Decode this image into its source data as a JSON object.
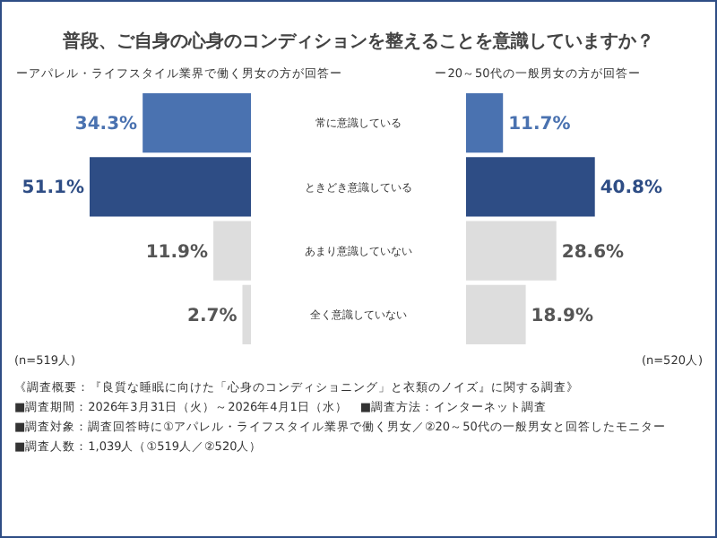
{
  "chart_data": [
    {
      "type": "bar",
      "orientation": "horizontal",
      "title": "普段、ご自身の心身のコンディションを整えることを意識していますか？",
      "subtitle": "ーアパレル・ライフスタイル業界で働く男女の方が回答ー",
      "categories": [
        "常に意識している",
        "ときどき意識している",
        "あまり意識していない",
        "全く意識していない"
      ],
      "values": [
        34.3,
        51.1,
        11.9,
        2.7
      ],
      "value_labels": [
        "34.3%",
        "51.1%",
        "11.9%",
        "2.7%"
      ],
      "colors": [
        "#4a72b0",
        "#2e4d85",
        "#dddddd",
        "#dddddd"
      ],
      "annotations": [
        "(n=519人)",
        "《調査概要：『良質な睡眠に向けた「心身のコンディショニング」と衣類のノイズ』に関する調査》",
        "■調査期間：2026年3月31日（火）～2026年4月1日（水）　■調査方法：インターネット調査",
        "■調査対象：調査回答時に①アパレル・ライフスタイル業界で働く男女／②20～50代の一般男女と回答したモニター",
        "■調査人数：1,039人（①519人／②520人）"
      ]
    },
    {
      "type": "bar",
      "orientation": "horizontal",
      "subtitle": "ー20～50代の一般男女の方が回答ー",
      "categories": [
        null,
        null,
        null,
        null
      ],
      "values": [
        11.7,
        40.8,
        28.6,
        18.9
      ],
      "value_labels": [
        "11.7%",
        "40.8%",
        "28.6%",
        "18.9%"
      ],
      "colors": [
        "#4a72b0",
        "#2e4d85",
        "#dddddd",
        "#dddddd"
      ],
      "annotations": [
        "(n=520人)"
      ]
    }
  ]
}
